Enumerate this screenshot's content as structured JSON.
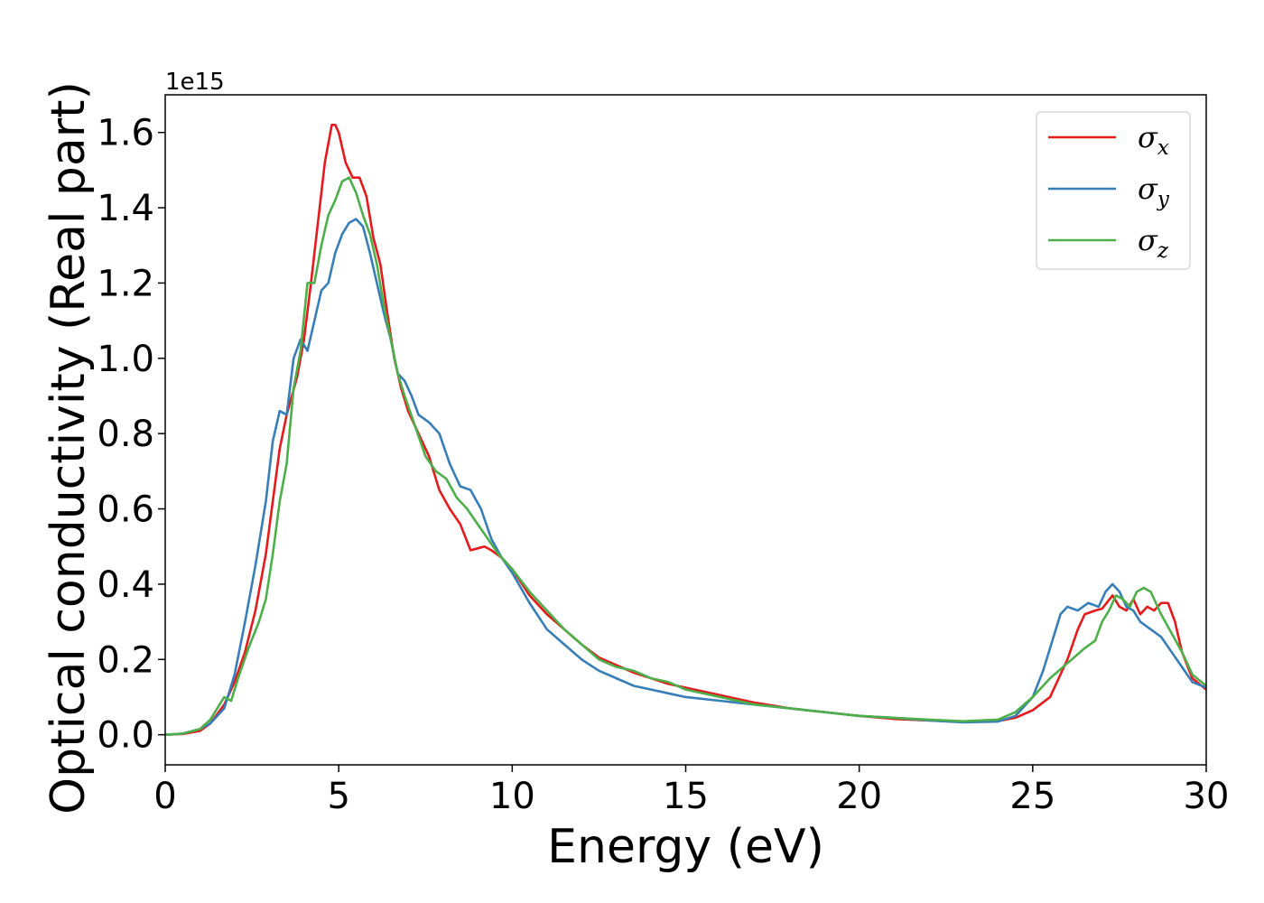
{
  "chart_data": {
    "type": "line",
    "xlabel": "Energy (eV)",
    "ylabel": "Optical conductivity (Real part)",
    "y_offset_text": "1e15",
    "xlim": [
      0,
      30
    ],
    "ylim": [
      -0.08,
      1.7
    ],
    "x_ticks": [
      0,
      5,
      10,
      15,
      20,
      25,
      30
    ],
    "x_tick_labels": [
      "0",
      "5",
      "10",
      "15",
      "20",
      "25",
      "30"
    ],
    "y_ticks": [
      0.0,
      0.2,
      0.4,
      0.6,
      0.8,
      1.0,
      1.2,
      1.4,
      1.6
    ],
    "y_tick_labels": [
      "0.0",
      "0.2",
      "0.4",
      "0.6",
      "0.8",
      "1.0",
      "1.2",
      "1.4",
      "1.6"
    ],
    "grid": false,
    "legend_position": "top-right",
    "series": [
      {
        "name": "σx",
        "legend_main": "σ",
        "legend_sub": "x",
        "color": "#e41a1c",
        "x": [
          0,
          0.5,
          1.0,
          1.3,
          1.7,
          2.0,
          2.3,
          2.6,
          2.9,
          3.1,
          3.3,
          3.5,
          3.8,
          4.0,
          4.2,
          4.4,
          4.6,
          4.8,
          4.9,
          5.0,
          5.2,
          5.4,
          5.6,
          5.8,
          6.0,
          6.2,
          6.4,
          6.6,
          6.8,
          7.0,
          7.3,
          7.6,
          7.9,
          8.2,
          8.5,
          8.8,
          9.0,
          9.2,
          9.4,
          9.7,
          10.0,
          10.5,
          11.0,
          11.5,
          12.0,
          12.5,
          13.0,
          13.5,
          14.0,
          14.5,
          15.0,
          16.0,
          17.0,
          18.0,
          19.0,
          20.0,
          21.0,
          22.0,
          23.0,
          24.0,
          24.5,
          25.0,
          25.5,
          26.0,
          26.3,
          26.5,
          26.8,
          27.0,
          27.3,
          27.5,
          27.7,
          27.9,
          28.1,
          28.3,
          28.5,
          28.7,
          28.9,
          29.1,
          29.3,
          29.6,
          30.0
        ],
        "y": [
          0.0,
          0.002,
          0.01,
          0.03,
          0.08,
          0.14,
          0.22,
          0.33,
          0.48,
          0.62,
          0.76,
          0.85,
          0.95,
          1.05,
          1.2,
          1.36,
          1.52,
          1.62,
          1.62,
          1.6,
          1.52,
          1.48,
          1.48,
          1.43,
          1.32,
          1.25,
          1.12,
          1.0,
          0.92,
          0.86,
          0.8,
          0.74,
          0.65,
          0.6,
          0.56,
          0.49,
          0.495,
          0.5,
          0.49,
          0.47,
          0.44,
          0.37,
          0.32,
          0.28,
          0.24,
          0.205,
          0.185,
          0.165,
          0.15,
          0.135,
          0.125,
          0.105,
          0.085,
          0.07,
          0.06,
          0.05,
          0.042,
          0.038,
          0.034,
          0.036,
          0.045,
          0.065,
          0.1,
          0.2,
          0.28,
          0.32,
          0.33,
          0.335,
          0.37,
          0.34,
          0.33,
          0.36,
          0.32,
          0.34,
          0.33,
          0.35,
          0.35,
          0.3,
          0.22,
          0.15,
          0.12
        ]
      },
      {
        "name": "σy",
        "legend_main": "σ",
        "legend_sub": "y",
        "color": "#377eb8",
        "x": [
          0,
          0.5,
          1.0,
          1.3,
          1.7,
          2.0,
          2.3,
          2.6,
          2.9,
          3.1,
          3.3,
          3.5,
          3.7,
          3.9,
          4.1,
          4.3,
          4.5,
          4.7,
          4.9,
          5.1,
          5.3,
          5.5,
          5.7,
          5.9,
          6.1,
          6.3,
          6.5,
          6.7,
          6.9,
          7.1,
          7.3,
          7.6,
          7.9,
          8.2,
          8.5,
          8.8,
          9.1,
          9.4,
          9.7,
          10.0,
          10.5,
          11.0,
          11.5,
          12.0,
          12.5,
          13.0,
          13.5,
          14.0,
          14.5,
          15.0,
          16.0,
          17.0,
          18.0,
          19.0,
          20.0,
          21.0,
          22.0,
          23.0,
          24.0,
          24.5,
          25.0,
          25.3,
          25.6,
          25.8,
          26.0,
          26.3,
          26.6,
          26.9,
          27.1,
          27.3,
          27.5,
          27.7,
          27.9,
          28.1,
          28.4,
          28.7,
          29.0,
          29.3,
          29.6,
          30.0
        ],
        "y": [
          0.0,
          0.003,
          0.015,
          0.03,
          0.07,
          0.16,
          0.3,
          0.45,
          0.62,
          0.78,
          0.86,
          0.85,
          1.0,
          1.05,
          1.02,
          1.1,
          1.18,
          1.2,
          1.28,
          1.33,
          1.36,
          1.37,
          1.35,
          1.28,
          1.2,
          1.12,
          1.05,
          0.96,
          0.94,
          0.9,
          0.85,
          0.83,
          0.8,
          0.72,
          0.66,
          0.65,
          0.6,
          0.52,
          0.47,
          0.43,
          0.35,
          0.28,
          0.24,
          0.2,
          0.17,
          0.15,
          0.13,
          0.12,
          0.11,
          0.1,
          0.09,
          0.08,
          0.07,
          0.06,
          0.05,
          0.045,
          0.038,
          0.033,
          0.035,
          0.05,
          0.1,
          0.17,
          0.26,
          0.32,
          0.34,
          0.33,
          0.35,
          0.34,
          0.38,
          0.4,
          0.38,
          0.34,
          0.33,
          0.3,
          0.28,
          0.26,
          0.22,
          0.18,
          0.14,
          0.125
        ]
      },
      {
        "name": "σz",
        "legend_main": "σ",
        "legend_sub": "z",
        "color": "#4daf4a",
        "x": [
          0,
          0.5,
          1.0,
          1.3,
          1.5,
          1.7,
          1.9,
          2.1,
          2.4,
          2.7,
          2.9,
          3.1,
          3.3,
          3.5,
          3.7,
          3.9,
          4.1,
          4.3,
          4.5,
          4.7,
          4.9,
          5.1,
          5.3,
          5.5,
          5.7,
          5.9,
          6.1,
          6.3,
          6.5,
          6.7,
          6.9,
          7.2,
          7.5,
          7.8,
          8.1,
          8.4,
          8.7,
          9.0,
          9.3,
          9.6,
          10.0,
          10.5,
          11.0,
          11.5,
          12.0,
          12.5,
          13.0,
          13.5,
          14.0,
          14.5,
          15.0,
          16.0,
          17.0,
          18.0,
          19.0,
          20.0,
          21.0,
          22.0,
          23.0,
          24.0,
          24.5,
          25.0,
          25.5,
          26.0,
          26.5,
          26.8,
          27.0,
          27.2,
          27.4,
          27.6,
          27.8,
          28.0,
          28.2,
          28.4,
          28.7,
          29.0,
          29.3,
          29.6,
          30.0
        ],
        "y": [
          0.0,
          0.003,
          0.015,
          0.04,
          0.07,
          0.1,
          0.09,
          0.15,
          0.23,
          0.3,
          0.36,
          0.48,
          0.62,
          0.72,
          0.92,
          1.02,
          1.2,
          1.2,
          1.3,
          1.38,
          1.42,
          1.47,
          1.48,
          1.44,
          1.38,
          1.33,
          1.25,
          1.14,
          1.05,
          0.96,
          0.9,
          0.82,
          0.74,
          0.7,
          0.68,
          0.63,
          0.6,
          0.56,
          0.52,
          0.48,
          0.44,
          0.38,
          0.33,
          0.28,
          0.24,
          0.2,
          0.18,
          0.17,
          0.15,
          0.14,
          0.12,
          0.1,
          0.08,
          0.07,
          0.06,
          0.05,
          0.045,
          0.04,
          0.036,
          0.04,
          0.06,
          0.1,
          0.15,
          0.19,
          0.23,
          0.25,
          0.3,
          0.33,
          0.37,
          0.36,
          0.34,
          0.38,
          0.39,
          0.38,
          0.32,
          0.27,
          0.22,
          0.16,
          0.13
        ]
      }
    ]
  }
}
